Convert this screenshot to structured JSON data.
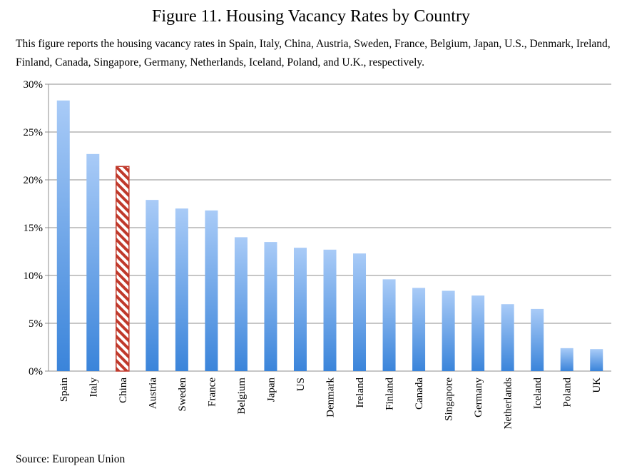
{
  "title": "Figure 11. Housing Vacancy Rates by Country",
  "caption": "This figure reports the housing vacancy rates in Spain, Italy, China, Austria, Sweden, France, Belgium, Japan, U.S., Denmark, Ireland, Finland, Canada, Singapore, Germany, Netherlands, Iceland, Poland, and U.K., respectively.",
  "source": "Source: European Union",
  "colors": {
    "bar_top": "#a9cbf7",
    "bar_bottom": "#3a84da",
    "highlight_stripe": "#c0392b",
    "gridline": "#8c8c8c"
  },
  "chart_data": {
    "type": "bar",
    "categories": [
      "Spain",
      "Italy",
      "China",
      "Austria",
      "Sweden",
      "France",
      "Belgium",
      "Japan",
      "US",
      "Denmark",
      "Ireland",
      "Finland",
      "Canada",
      "Singapore",
      "Germany",
      "Netherlands",
      "Iceland",
      "Poland",
      "UK"
    ],
    "values": [
      28.3,
      22.7,
      21.4,
      17.9,
      17.0,
      16.8,
      14.0,
      13.5,
      12.9,
      12.7,
      12.3,
      9.6,
      8.7,
      8.4,
      7.9,
      7.0,
      6.5,
      2.4,
      2.3
    ],
    "highlight": "China",
    "ylim": [
      0,
      30
    ],
    "yticks": [
      0,
      5,
      10,
      15,
      20,
      25,
      30
    ],
    "ytick_labels": [
      "0%",
      "5%",
      "10%",
      "15%",
      "20%",
      "25%",
      "30%"
    ],
    "grid": true,
    "legend": "none",
    "xlabel": "",
    "ylabel": ""
  }
}
